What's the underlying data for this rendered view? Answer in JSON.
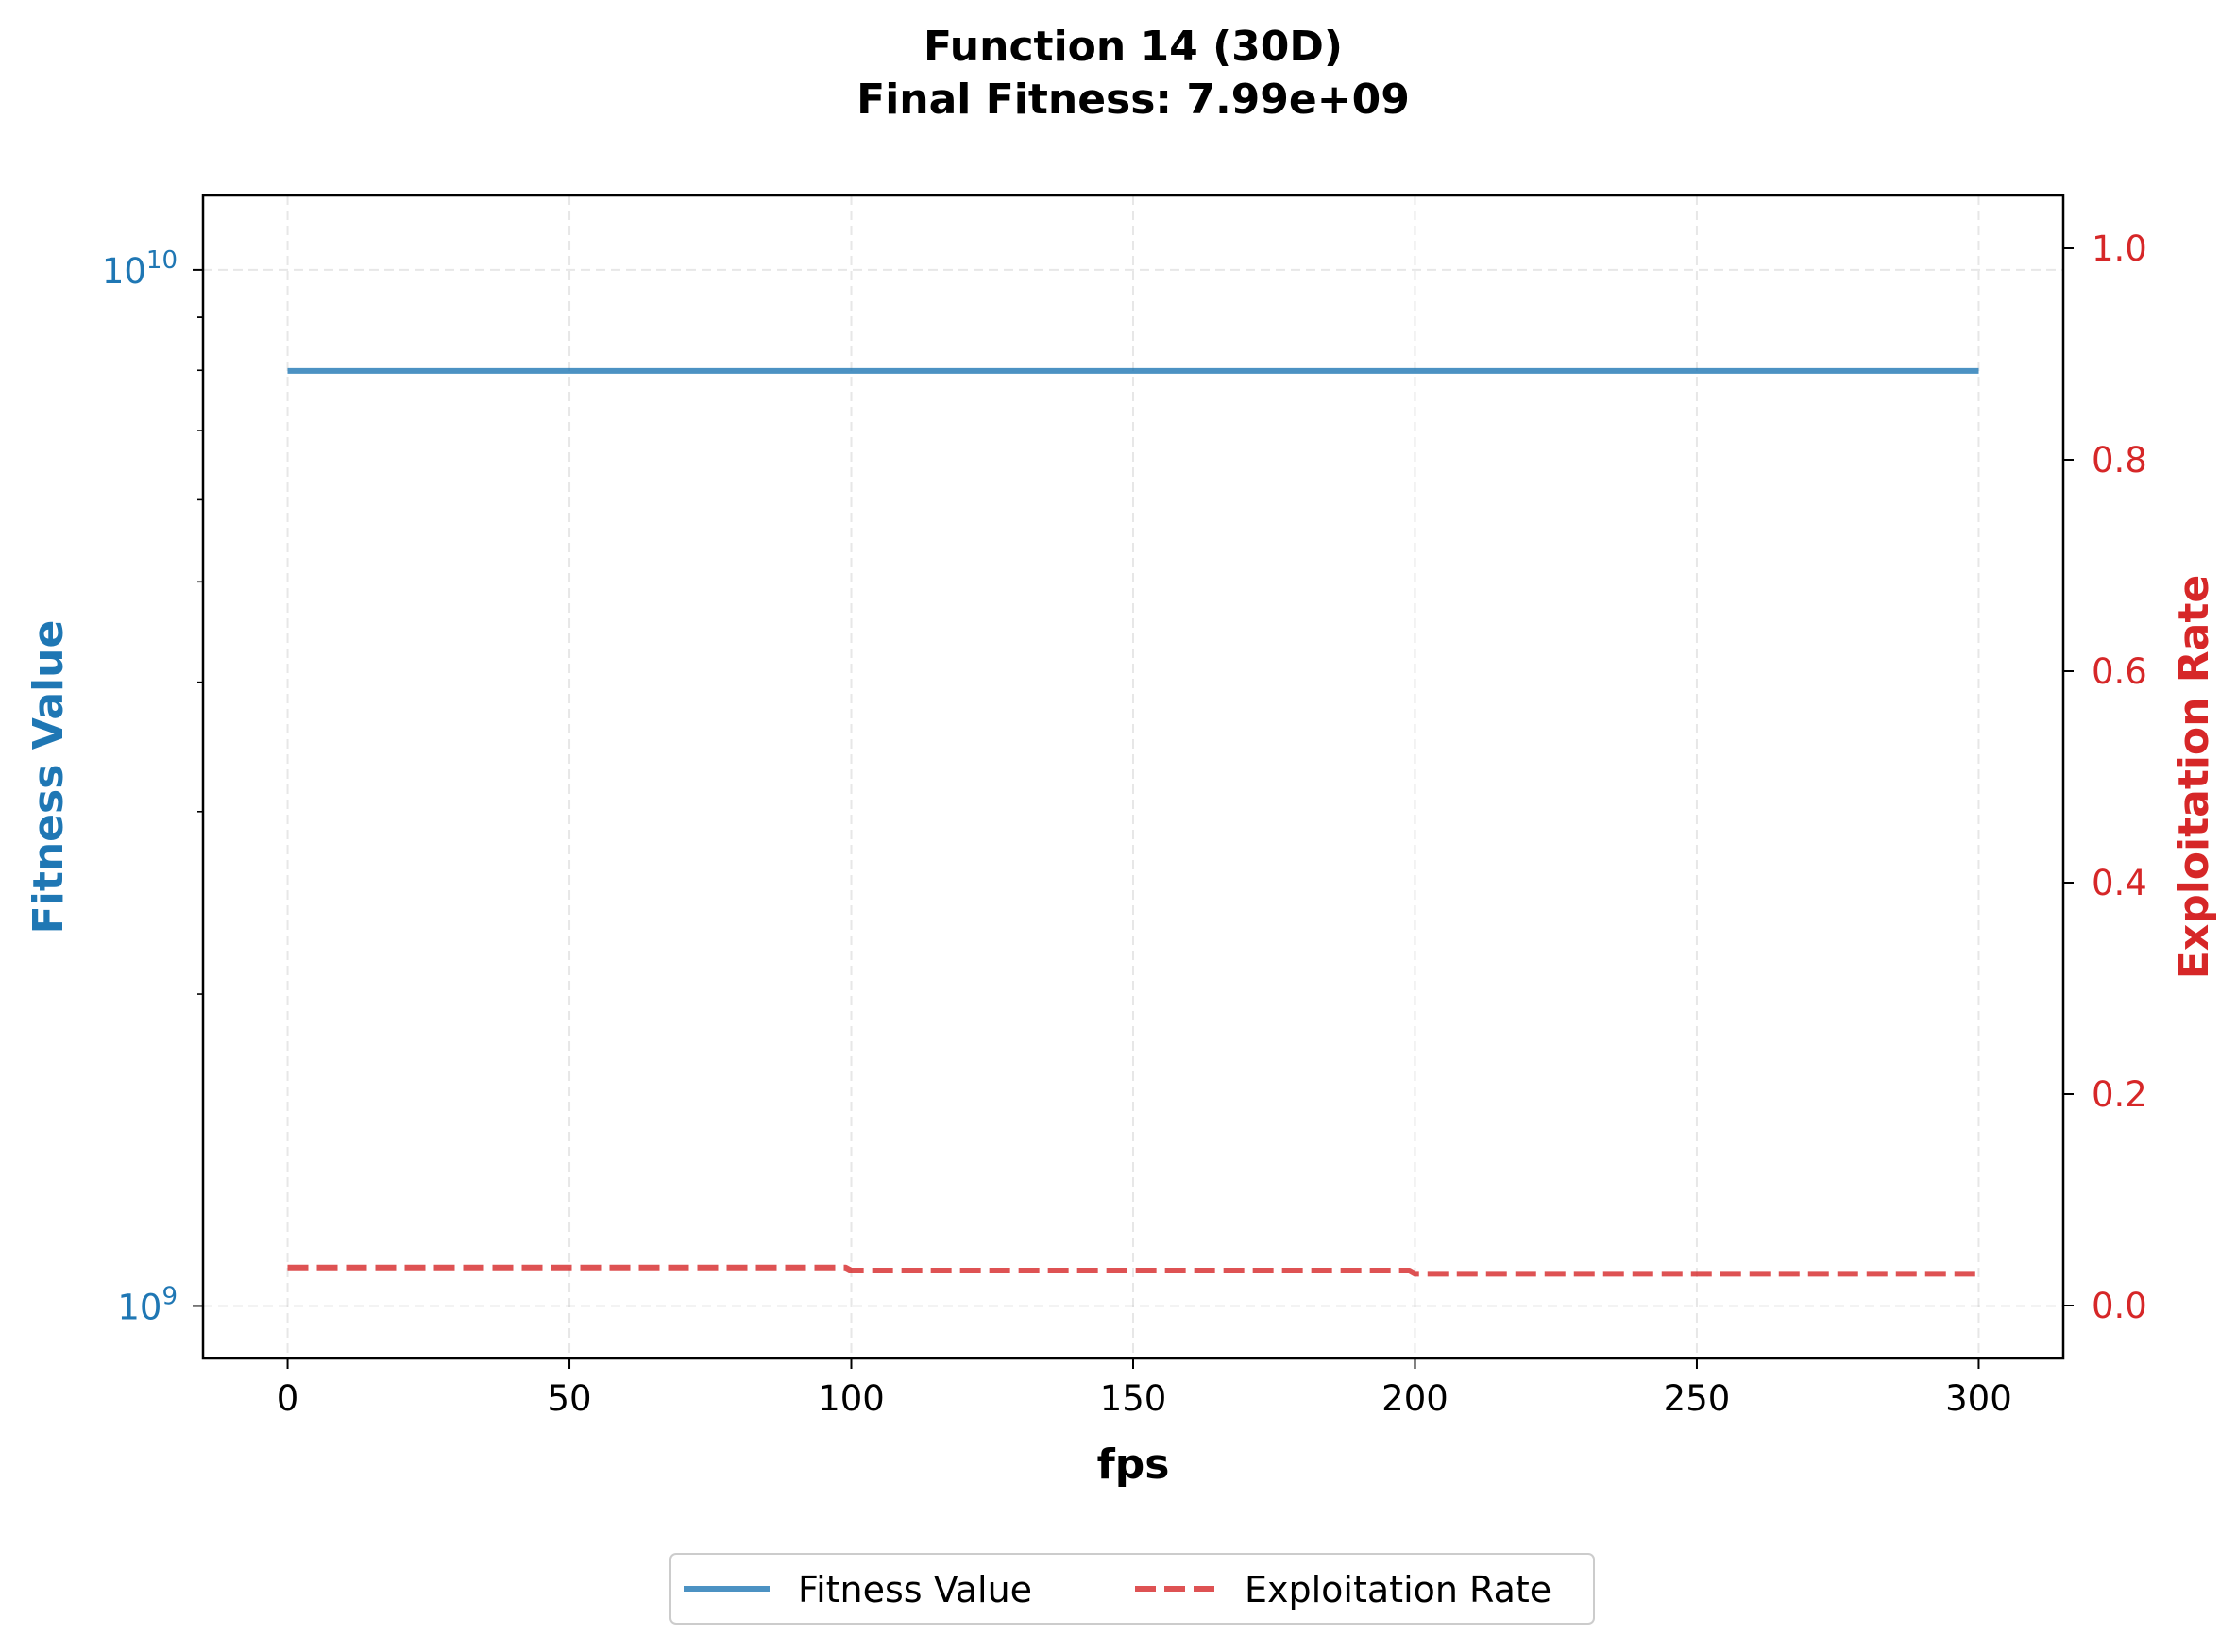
{
  "chart_data": {
    "type": "line",
    "title": "Function 14 (30D)",
    "subtitle": "Final Fitness: 7.99e+09",
    "xlabel": "fps",
    "ylabel_left": "Fitness Value",
    "ylabel_right": "Exploitation Rate",
    "xlim": [
      -15,
      315
    ],
    "x_ticks": [
      0,
      50,
      100,
      150,
      200,
      250,
      300
    ],
    "left_axis": {
      "scale": "log",
      "ylim": [
        890000000,
        11800000000
      ],
      "major_ticks": [
        {
          "value": 1000000000,
          "base": "10",
          "exp": "9"
        },
        {
          "value": 10000000000,
          "base": "10",
          "exp": "10"
        }
      ],
      "minor_ticks": [
        2000000000,
        3000000000,
        4000000000,
        5000000000,
        6000000000,
        7000000000,
        8000000000,
        9000000000
      ],
      "color": "#1f77b4"
    },
    "right_axis": {
      "scale": "linear",
      "ylim": [
        -0.05,
        1.05
      ],
      "ticks": [
        0.0,
        0.2,
        0.4,
        0.6,
        0.8,
        1.0
      ],
      "tick_labels": [
        "0.0",
        "0.2",
        "0.4",
        "0.6",
        "0.8",
        "1.0"
      ],
      "color": "#d62728"
    },
    "series": [
      {
        "name": "Fitness Value",
        "axis": "left",
        "style": "solid",
        "color": "#1f77b4",
        "x": [
          0,
          300
        ],
        "y": [
          7990000000,
          7990000000
        ]
      },
      {
        "name": "Exploitation Rate",
        "axis": "right",
        "style": "dashed",
        "color": "#d62728",
        "x": [
          0,
          99,
          100,
          199,
          200,
          300
        ],
        "y": [
          0.036,
          0.036,
          0.033,
          0.033,
          0.03,
          0.03
        ]
      }
    ],
    "grid": true,
    "legend": {
      "placement": "bottom-center",
      "ncol": 2
    }
  }
}
